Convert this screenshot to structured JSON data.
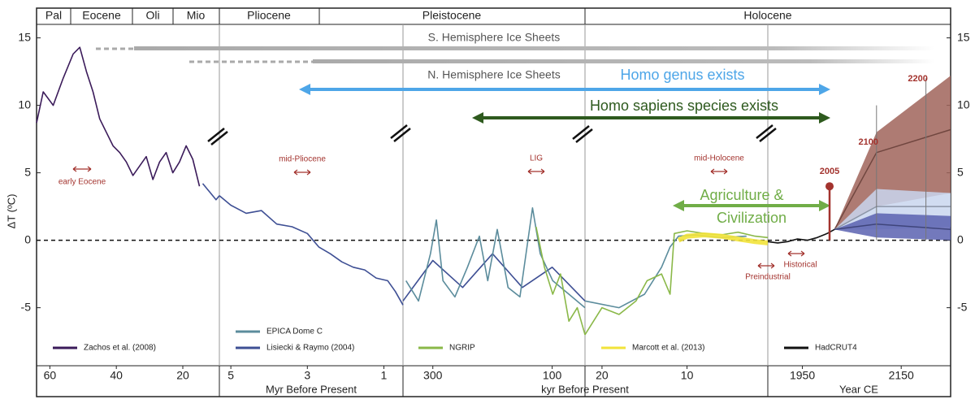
{
  "chart_data": {
    "type": "line",
    "epochs": [
      "Pal",
      "Eocene",
      "Oli",
      "Mio",
      "Pliocene",
      "Pleistocene",
      "Holocene"
    ],
    "y_label": "ΔT (ºC)",
    "ylim": [
      -9.3,
      16
    ],
    "yticks": [
      15,
      10,
      5,
      0,
      -5
    ],
    "x_labels": [
      "Myr Before Present",
      "kyr Before Present",
      "Year CE"
    ],
    "panels": [
      {
        "xlim": [
          64,
          9
        ],
        "xticks": [
          60,
          40,
          20
        ],
        "series": [
          {
            "color": "#3b1b5a",
            "x": [
              64,
              62,
              59,
              56,
              53,
              51,
              49,
              47,
              45,
              43,
              41,
              39,
              37,
              35,
              33,
              31,
              29,
              27,
              25,
              23,
              21,
              19,
              17,
              15
            ],
            "values": [
              8.7,
              11,
              10,
              12,
              13.8,
              14.3,
              12.5,
              11,
              9,
              8,
              7,
              6.5,
              5.8,
              4.8,
              5.5,
              6.2,
              4.5,
              5.8,
              6.5,
              5,
              5.8,
              7,
              6,
              4
            ]
          },
          {
            "color": "#3e4f94",
            "x": [
              14,
              12,
              10,
              9
            ],
            "values": [
              4.2,
              3.6,
              3.0,
              3.3
            ]
          }
        ]
      },
      {
        "xlim": [
          5.3,
          0.5
        ],
        "xticks": [
          5,
          3,
          1
        ],
        "series": [
          {
            "color": "#3e4f94",
            "x": [
              5.3,
              5.0,
              4.6,
              4.2,
              3.8,
              3.4,
              3.0,
              2.7,
              2.4,
              2.1,
              1.8,
              1.5,
              1.2,
              0.9,
              0.7,
              0.5
            ],
            "values": [
              3.3,
              2.6,
              2.0,
              2.2,
              1.2,
              1.0,
              0.5,
              -0.5,
              -1.0,
              -1.6,
              -2.0,
              -2.2,
              -2.8,
              -3.0,
              -3.8,
              -4.8
            ]
          }
        ]
      },
      {
        "xlim": [
          350,
          45
        ],
        "xticks": [
          300,
          100
        ],
        "series": [
          {
            "color": "#3e4f94",
            "x": [
              350,
              300,
              250,
              200,
              150,
              100,
              45
            ],
            "values": [
              -4.5,
              -1.5,
              -3.5,
              -1,
              -3.5,
              -2,
              -4.5
            ]
          },
          {
            "color": "#5b8c9c",
            "x": [
              345,
              324,
              304,
              294,
              283,
              263,
              242,
              222,
              208,
              192,
              174,
              154,
              133,
              120,
              99,
              72,
              45
            ],
            "values": [
              -3,
              -4.5,
              -1,
              1.5,
              -3,
              -4.2,
              -2,
              0.3,
              -3,
              0.8,
              -3.5,
              -4.2,
              2.4,
              -1,
              -3,
              -4,
              -5
            ]
          },
          {
            "color": "#8ab848",
            "x": [
              127,
              113,
              99,
              86,
              72,
              58,
              45
            ],
            "values": [
              1.0,
              -2,
              -4,
              -2.5,
              -6,
              -5,
              -7
            ]
          }
        ]
      },
      {
        "xlim": [
          22,
          0.5
        ],
        "xticks": [
          20,
          10
        ],
        "series": [
          {
            "color": "#5b8c9c",
            "x": [
              22,
              18,
              15,
              13,
              12,
              11,
              9,
              6,
              3
            ],
            "values": [
              -4.5,
              -5,
              -4,
              -2,
              -0.5,
              0.3,
              0.4,
              0.2,
              0.3
            ]
          },
          {
            "color": "#8ab848",
            "x": [
              22,
              20,
              18,
              16,
              14.7,
              13,
              12,
              11.5,
              10,
              8,
              6,
              4,
              2,
              0.5
            ],
            "values": [
              -7,
              -5,
              -5.5,
              -4.5,
              -3,
              -2.5,
              -4,
              0.5,
              0.7,
              0.5,
              0.4,
              0.6,
              0.3,
              0.2
            ]
          },
          {
            "color": "#f2e33a",
            "x": [
              11,
              10,
              8,
              6,
              4,
              2,
              0.5
            ],
            "values": [
              0.0,
              0.3,
              0.4,
              0.3,
              0.1,
              -0.1,
              -0.2
            ]
          }
        ]
      },
      {
        "xlim": [
          1880,
          2250
        ],
        "xticks": [
          1950,
          2150
        ],
        "series": [
          {
            "color": "#111111",
            "x": [
              1880,
              1900,
              1920,
              1940,
              1960,
              1980,
              2000,
              2015
            ],
            "values": [
              -0.1,
              -0.2,
              -0.1,
              0.1,
              0.0,
              0.2,
              0.5,
              0.8
            ]
          }
        ]
      }
    ],
    "projections": {
      "x": [
        2015,
        2100,
        2250
      ],
      "bands": [
        {
          "color": "#a0645a",
          "low": [
            0.8,
            2.5,
            3.5
          ],
          "high": [
            0.8,
            8,
            12.2
          ],
          "values": [
            0.8,
            6.5,
            8.2
          ]
        },
        {
          "color": "#c9d6ee",
          "low": [
            0.8,
            0.8,
            1.0
          ],
          "high": [
            0.8,
            3.8,
            3.5
          ],
          "values": [
            0.8,
            2.5,
            2.5
          ]
        },
        {
          "color": "#5a62b0",
          "low": [
            0.8,
            0.2,
            0.0
          ],
          "high": [
            0.8,
            2.0,
            1.8
          ],
          "values": [
            0.8,
            1.2,
            0.8
          ]
        }
      ]
    },
    "marker": {
      "x": 2005,
      "value": 4
    },
    "year_labels": [
      2100,
      2200
    ],
    "legend": [
      {
        "name": "Zachos et al. (2008)",
        "color": "#3b1b5a"
      },
      {
        "name": "EPICA Dome C",
        "color": "#5b8c9c"
      },
      {
        "name": "Lisiecki & Raymo (2004)",
        "color": "#3e4f94"
      },
      {
        "name": "NGRIP",
        "color": "#8ab848"
      },
      {
        "name": "Marcott et al. (2013)",
        "color": "#f2e33a"
      },
      {
        "name": "HadCRUT4",
        "color": "#111111"
      }
    ],
    "annotations": {
      "s_ice": "S. Hemisphere Ice Sheets",
      "n_ice": "N. Hemisphere Ice Sheets",
      "homo_genus": "Homo genus exists",
      "homo_sapiens": "Homo sapiens species exists",
      "agriculture": [
        "Agriculture &",
        "Civilization"
      ],
      "intervals": [
        "early Eocene",
        "mid-Pliocene",
        "LIG",
        "mid-Holocene",
        "Preindustrial",
        "Historical"
      ]
    }
  }
}
